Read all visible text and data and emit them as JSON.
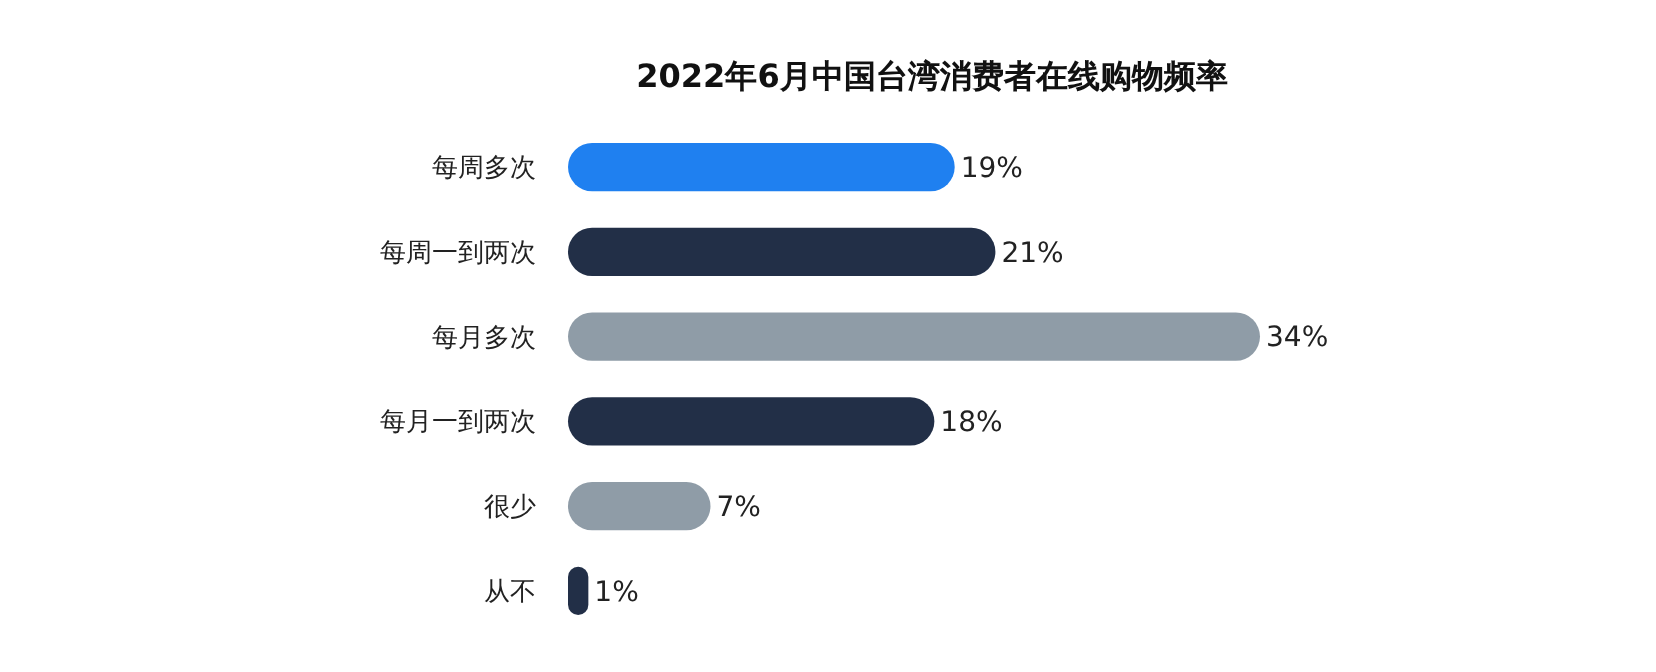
{
  "chart_data": {
    "type": "bar",
    "orientation": "horizontal",
    "title": "2022年6月中国台湾消费者在线购物频率",
    "categories": [
      "每周多次",
      "每周一到两次",
      "每月多次",
      "每月一到两次",
      "很少",
      "从不"
    ],
    "values": [
      19,
      21,
      34,
      18,
      7,
      1
    ],
    "colors": [
      "#1f80f0",
      "#222f47",
      "#8f9ca7",
      "#222f47",
      "#8f9ca7",
      "#222f47"
    ],
    "value_labels": [
      "19%",
      "21%",
      "34%",
      "18%",
      "7%",
      "1%"
    ]
  }
}
